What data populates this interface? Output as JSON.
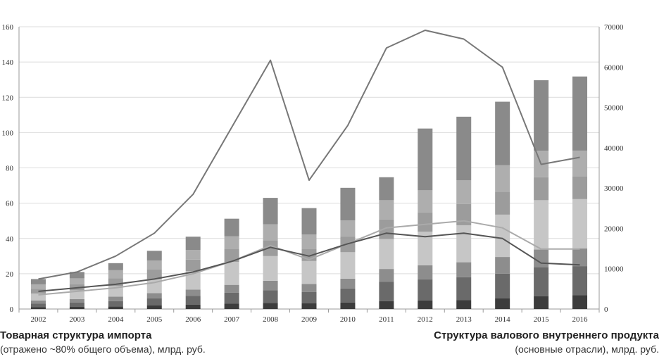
{
  "left_caption": {
    "title": "Товарная структура импорта",
    "subtitle": "(отражено ~80% общего объема), млрд. руб."
  },
  "right_caption": {
    "title": "Структура валового внутреннего продукта",
    "subtitle": "(основные  отрасли), млрд. руб."
  },
  "chart_data": {
    "type": "bar",
    "stacked": true,
    "grid": true,
    "categories": [
      "2002",
      "2003",
      "2004",
      "2005",
      "2006",
      "2007",
      "2008",
      "2009",
      "2010",
      "2011",
      "2012",
      "2013",
      "2014",
      "2015",
      "2016"
    ],
    "y_left": {
      "min": 0,
      "max": 160,
      "ticks": [
        0,
        20,
        40,
        60,
        80,
        100,
        120,
        140,
        160
      ]
    },
    "y_right": {
      "min": 0,
      "max": 70000,
      "ticks": [
        0,
        10000,
        20000,
        30000,
        40000,
        50000,
        60000,
        70000
      ]
    },
    "bar_segment_colors": [
      "#3c3c3c",
      "#6a6a6a",
      "#8d8d8d",
      "#c6c6c6",
      "#9c9c9c",
      "#aeaeae",
      "#8a8a8a"
    ],
    "stacked_series": [
      {
        "values": [
          1.0,
          1.2,
          1.5,
          2.0,
          2.4,
          3.0,
          3.5,
          3.2,
          3.6,
          4.5,
          4.8,
          5.0,
          6.0,
          7.2,
          7.8
        ]
      },
      {
        "values": [
          2.0,
          2.4,
          3.0,
          4.0,
          5.0,
          6.2,
          7.2,
          6.5,
          8.0,
          11.0,
          12.0,
          13.0,
          14.0,
          16.5,
          16.5
        ]
      },
      {
        "values": [
          1.8,
          2.0,
          2.5,
          3.0,
          3.6,
          4.5,
          5.3,
          4.5,
          5.6,
          7.2,
          8.0,
          8.5,
          9.5,
          10.0,
          10.0
        ]
      },
      {
        "values": [
          4.0,
          5.0,
          6.0,
          8.0,
          10.5,
          13.0,
          14.0,
          13.0,
          15.0,
          17.0,
          19.0,
          21.0,
          24.0,
          28.0,
          28.0
        ]
      },
      {
        "values": [
          2.6,
          3.5,
          4.5,
          5.5,
          6.5,
          7.5,
          9.0,
          7.0,
          9.0,
          11.0,
          11.0,
          12.0,
          13.0,
          13.0,
          13.0
        ]
      },
      {
        "values": [
          2.6,
          3.3,
          4.5,
          5.0,
          5.5,
          7.0,
          9.0,
          8.0,
          9.0,
          11.0,
          12.5,
          13.5,
          15.0,
          15.0,
          14.5
        ]
      },
      {
        "values": [
          3.0,
          3.6,
          4.0,
          5.5,
          7.5,
          10.0,
          15.0,
          15.0,
          18.5,
          13.0,
          35.0,
          36.0,
          36.0,
          40.0,
          42.0
        ]
      }
    ],
    "line_series": [
      {
        "axis": "left",
        "color": "#777777",
        "values": [
          17,
          21,
          30,
          43,
          65,
          103,
          141,
          73,
          104,
          148,
          158,
          153,
          137,
          82,
          86
        ]
      },
      {
        "axis": "left",
        "color": "#aaaaaa",
        "values": [
          8,
          10,
          12,
          15,
          20,
          27,
          36,
          28,
          37,
          46,
          48,
          50,
          46,
          34,
          34
        ]
      },
      {
        "axis": "left",
        "color": "#555555",
        "values": [
          10,
          12,
          14,
          17,
          21,
          27,
          35,
          30,
          37,
          43,
          41,
          43,
          40,
          26,
          25
        ]
      }
    ]
  }
}
